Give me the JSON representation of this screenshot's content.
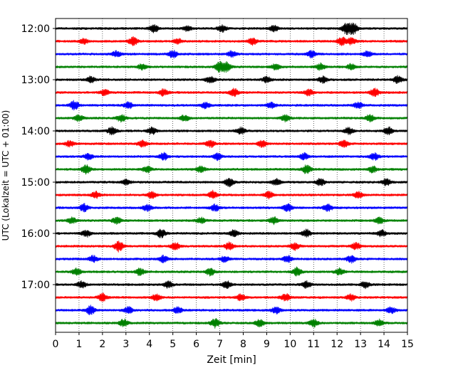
{
  "chart_data": {
    "type": "line",
    "title": "",
    "xlabel": "Zeit  [min]",
    "ylabel": "UTC (Lokalzeit = UTC + 01:00)",
    "xlim": [
      0,
      15
    ],
    "xticks": [
      "0",
      "1",
      "2",
      "3",
      "4",
      "5",
      "6",
      "7",
      "8",
      "9",
      "10",
      "11",
      "12",
      "13",
      "14",
      "15"
    ],
    "yticks": [
      "12:00",
      "13:00",
      "14:00",
      "15:00",
      "16:00",
      "17:00"
    ],
    "grid": "vertical dotted",
    "trace_minutes": 15,
    "trace_count": 24,
    "trace_colors": [
      "#000000",
      "#ff0000",
      "#0000ff",
      "#008000"
    ],
    "bursts": [
      [
        [
          4.2,
          0.9
        ],
        [
          7.1,
          0.8
        ],
        [
          9.3,
          0.7
        ],
        [
          12.4,
          1.3
        ],
        [
          12.7,
          1.2
        ],
        [
          5.6,
          0.6
        ]
      ],
      [
        [
          3.3,
          1.0
        ],
        [
          8.4,
          0.9
        ],
        [
          12.2,
          1.0
        ],
        [
          12.6,
          0.8
        ],
        [
          1.2,
          0.6
        ],
        [
          5.2,
          0.6
        ]
      ],
      [
        [
          2.6,
          0.7
        ],
        [
          5.0,
          0.9
        ],
        [
          7.5,
          0.7
        ],
        [
          10.9,
          0.8
        ],
        [
          13.3,
          0.7
        ]
      ],
      [
        [
          3.7,
          0.7
        ],
        [
          7.0,
          1.2
        ],
        [
          7.3,
          1.1
        ],
        [
          9.4,
          0.8
        ],
        [
          11.3,
          0.8
        ],
        [
          12.6,
          0.7
        ]
      ],
      [
        [
          1.5,
          0.7
        ],
        [
          6.6,
          0.8
        ],
        [
          9.0,
          0.7
        ],
        [
          11.4,
          0.8
        ],
        [
          14.6,
          0.9
        ]
      ],
      [
        [
          2.1,
          0.8
        ],
        [
          4.6,
          0.8
        ],
        [
          7.6,
          0.9
        ],
        [
          10.8,
          0.8
        ],
        [
          13.6,
          1.0
        ]
      ],
      [
        [
          0.8,
          1.1
        ],
        [
          3.1,
          0.8
        ],
        [
          6.4,
          0.7
        ],
        [
          9.2,
          0.7
        ],
        [
          12.9,
          0.8
        ]
      ],
      [
        [
          1.0,
          0.8
        ],
        [
          2.8,
          0.9
        ],
        [
          5.5,
          0.7
        ],
        [
          9.8,
          0.8
        ],
        [
          13.4,
          0.8
        ]
      ],
      [
        [
          2.4,
          0.9
        ],
        [
          4.1,
          0.8
        ],
        [
          7.9,
          0.8
        ],
        [
          12.5,
          0.8
        ],
        [
          14.2,
          0.9
        ]
      ],
      [
        [
          0.6,
          0.7
        ],
        [
          3.7,
          0.8
        ],
        [
          6.6,
          0.8
        ],
        [
          8.8,
          0.8
        ],
        [
          12.3,
          0.8
        ]
      ],
      [
        [
          1.4,
          0.7
        ],
        [
          4.6,
          0.9
        ],
        [
          6.9,
          0.8
        ],
        [
          10.6,
          0.8
        ],
        [
          13.6,
          0.8
        ]
      ],
      [
        [
          1.3,
          1.1
        ],
        [
          3.9,
          0.8
        ],
        [
          6.2,
          0.8
        ],
        [
          10.7,
          1.0
        ],
        [
          13.5,
          0.8
        ]
      ],
      [
        [
          3.0,
          0.7
        ],
        [
          7.4,
          1.0
        ],
        [
          9.4,
          0.8
        ],
        [
          11.3,
          0.9
        ],
        [
          14.1,
          0.8
        ]
      ],
      [
        [
          1.7,
          0.8
        ],
        [
          4.1,
          0.8
        ],
        [
          6.7,
          1.0
        ],
        [
          9.1,
          0.8
        ],
        [
          12.9,
          0.8
        ]
      ],
      [
        [
          1.2,
          0.9
        ],
        [
          3.9,
          0.8
        ],
        [
          6.8,
          0.8
        ],
        [
          9.9,
          0.9
        ],
        [
          11.6,
          0.8
        ]
      ],
      [
        [
          0.7,
          0.7
        ],
        [
          2.6,
          0.8
        ],
        [
          6.2,
          0.7
        ],
        [
          9.3,
          0.8
        ],
        [
          13.8,
          0.8
        ]
      ],
      [
        [
          1.3,
          0.8
        ],
        [
          4.5,
          1.0
        ],
        [
          7.6,
          0.8
        ],
        [
          10.7,
          0.9
        ],
        [
          13.9,
          0.8
        ]
      ],
      [
        [
          2.7,
          1.3
        ],
        [
          5.1,
          0.9
        ],
        [
          7.4,
          0.9
        ],
        [
          10.2,
          0.9
        ],
        [
          12.8,
          0.8
        ]
      ],
      [
        [
          1.6,
          0.8
        ],
        [
          4.6,
          0.8
        ],
        [
          7.2,
          0.7
        ],
        [
          9.9,
          0.8
        ],
        [
          12.6,
          0.9
        ]
      ],
      [
        [
          0.9,
          0.8
        ],
        [
          3.6,
          0.8
        ],
        [
          6.6,
          0.9
        ],
        [
          10.3,
          1.0
        ],
        [
          12.1,
          0.8
        ]
      ],
      [
        [
          1.1,
          0.8
        ],
        [
          4.8,
          0.8
        ],
        [
          7.3,
          0.9
        ],
        [
          10.7,
          0.8
        ],
        [
          13.2,
          0.8
        ]
      ],
      [
        [
          2.0,
          0.9
        ],
        [
          4.3,
          0.8
        ],
        [
          7.9,
          0.8
        ],
        [
          9.8,
          0.9
        ],
        [
          12.6,
          0.8
        ]
      ],
      [
        [
          1.5,
          1.1
        ],
        [
          3.1,
          0.8
        ],
        [
          5.2,
          0.7
        ],
        [
          9.4,
          0.8
        ],
        [
          14.3,
          0.8
        ]
      ],
      [
        [
          2.9,
          0.9
        ],
        [
          6.8,
          1.1
        ],
        [
          8.7,
          0.8
        ],
        [
          11.0,
          0.9
        ],
        [
          13.8,
          0.8
        ]
      ]
    ]
  }
}
